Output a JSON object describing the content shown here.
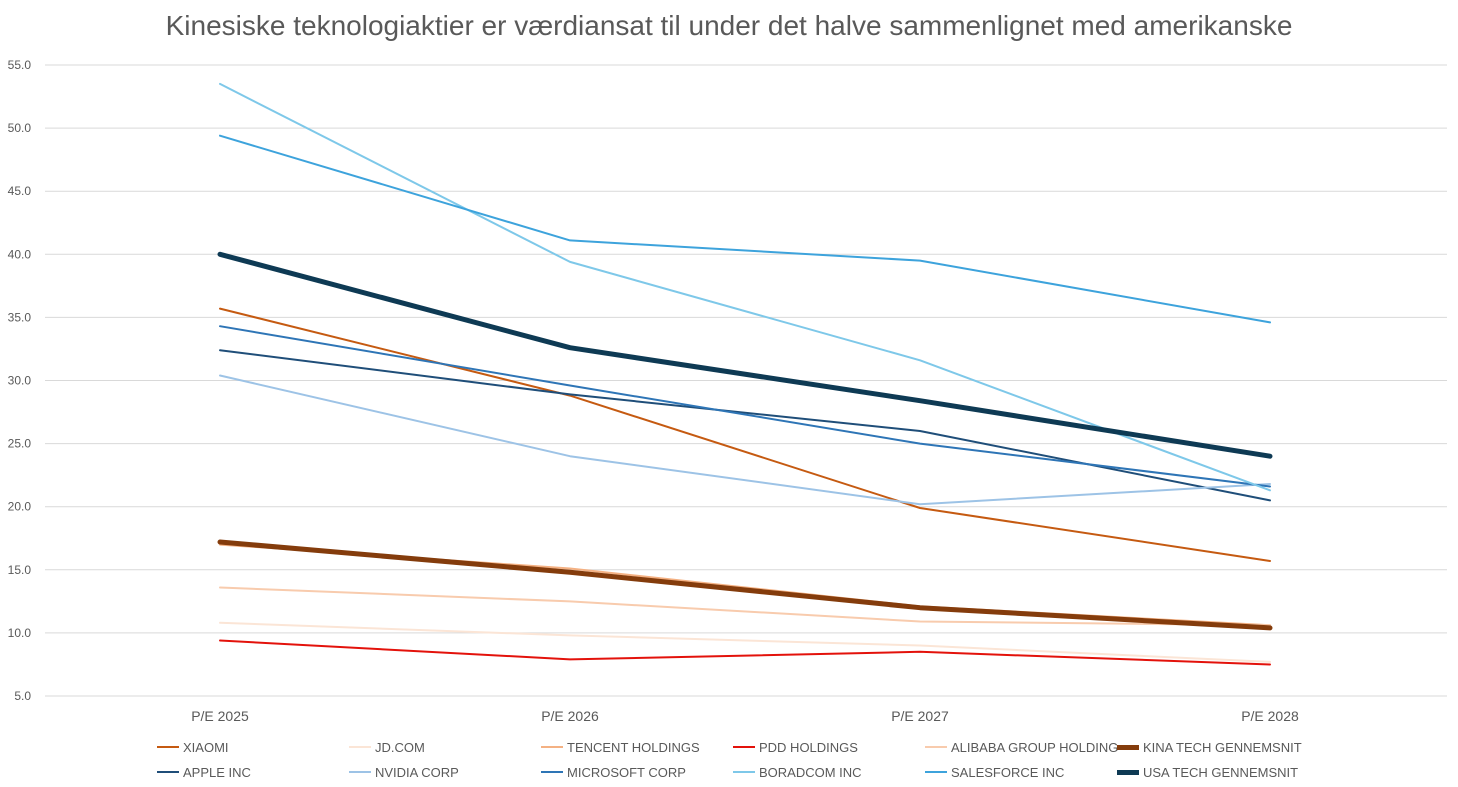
{
  "chart_data": {
    "type": "line",
    "title": "Kinesiske teknologiaktier er værdiansat til under det halve sammenlignet med amerikanske",
    "xlabel": "",
    "ylabel": "",
    "categories": [
      "P/E 2025",
      "P/E 2026",
      "P/E 2027",
      "P/E 2028"
    ],
    "ylim": [
      5.0,
      55.0
    ],
    "yticks": [
      "5.0",
      "10.0",
      "15.0",
      "20.0",
      "25.0",
      "30.0",
      "35.0",
      "40.0",
      "45.0",
      "50.0",
      "55.0"
    ],
    "grid": true,
    "legend_position": "bottom",
    "series": [
      {
        "name": "XIAOMI",
        "color": "#C55A11",
        "width": 2,
        "values": [
          35.7,
          28.8,
          19.9,
          15.7
        ]
      },
      {
        "name": "JD.COM",
        "color": "#FBE5D6",
        "width": 2,
        "values": [
          10.8,
          9.8,
          9.0,
          7.7
        ]
      },
      {
        "name": "TENCENT HOLDINGS",
        "color": "#F4B183",
        "width": 2,
        "values": [
          17.0,
          15.1,
          12.1,
          10.6
        ]
      },
      {
        "name": "PDD HOLDINGS",
        "color": "#E3120B",
        "width": 2,
        "values": [
          9.4,
          7.9,
          8.5,
          7.5
        ]
      },
      {
        "name": "ALIBABA GROUP HOLDING",
        "color": "#F8CBAD",
        "width": 2,
        "values": [
          13.6,
          12.5,
          10.9,
          10.6
        ]
      },
      {
        "name": "KINA TECH GENNEMSNIT",
        "color": "#843C0C",
        "width": 5,
        "values": [
          17.2,
          14.8,
          12.0,
          10.4
        ]
      },
      {
        "name": "APPLE INC",
        "color": "#1F4E79",
        "width": 2,
        "values": [
          32.4,
          28.9,
          26.0,
          20.5
        ]
      },
      {
        "name": "NVIDIA CORP",
        "color": "#9DC3E6",
        "width": 2,
        "values": [
          30.4,
          24.0,
          20.2,
          21.8
        ]
      },
      {
        "name": "MICROSOFT CORP",
        "color": "#2E75B6",
        "width": 2,
        "values": [
          34.3,
          29.6,
          25.0,
          21.6
        ]
      },
      {
        "name": "BORADCOM INC",
        "color": "#7EC8E9",
        "width": 2,
        "values": [
          53.5,
          39.4,
          31.6,
          21.3
        ]
      },
      {
        "name": "SALESFORCE INC",
        "color": "#3DA3DC",
        "width": 2,
        "values": [
          49.4,
          41.1,
          39.5,
          34.6
        ]
      },
      {
        "name": "USA TECH GENNEMSNIT",
        "color": "#0E3A54",
        "width": 5,
        "values": [
          40.0,
          32.6,
          28.4,
          24.0
        ]
      }
    ]
  }
}
